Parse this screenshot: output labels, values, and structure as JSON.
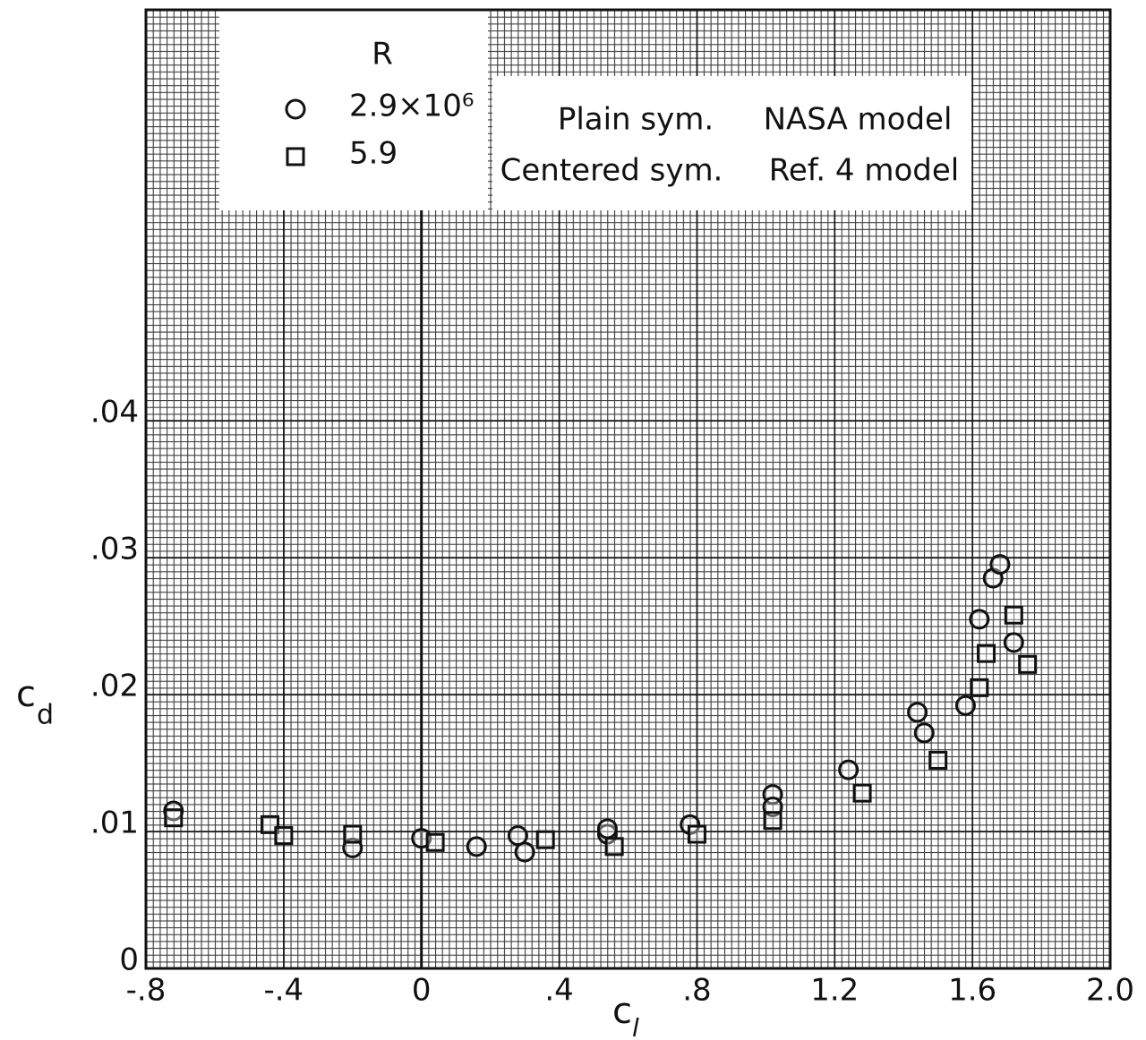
{
  "chart_data": {
    "type": "scatter",
    "x_label": {
      "text": "c",
      "subscript": "l"
    },
    "y_label": {
      "text": "c",
      "subscript": "d"
    },
    "legend_title": "R",
    "symbol_notes": [
      [
        "Plain sym.",
        "NASA model"
      ],
      [
        "Centered sym.",
        "Ref. 4 model"
      ]
    ],
    "xlim": [
      -0.8,
      2.0
    ],
    "ylim": [
      0,
      0.07
    ],
    "xticks": [
      {
        "value": -0.8,
        "label": "-.8"
      },
      {
        "value": -0.4,
        "label": "-.4"
      },
      0,
      {
        "value": 0.4,
        "label": ".4"
      },
      {
        "value": 0.8,
        "label": ".8"
      },
      {
        "value": 1.2,
        "label": "1.2"
      },
      {
        "value": 1.6,
        "label": "1.6"
      },
      {
        "value": 2.0,
        "label": "2.0"
      }
    ],
    "yticks": [
      0,
      {
        "value": 0.01,
        "label": ".01"
      },
      {
        "value": 0.02,
        "label": ".02"
      },
      {
        "value": 0.03,
        "label": ".03"
      },
      {
        "value": 0.04,
        "label": ".04"
      }
    ],
    "grid": true,
    "series": [
      {
        "name": "2.9×10⁶",
        "marker": "circle",
        "color": "#111111",
        "x": [
          -0.72,
          -0.2,
          0.0,
          0.16,
          0.28,
          0.3,
          0.54,
          0.54,
          0.78,
          1.02,
          1.02,
          1.24,
          1.44,
          1.46,
          1.58,
          1.62,
          1.66,
          1.68,
          1.72
        ],
        "values": [
          0.0115,
          0.0088,
          0.0095,
          0.0089,
          0.0097,
          0.0085,
          0.0098,
          0.0102,
          0.0105,
          0.0127,
          0.0118,
          0.0145,
          0.0187,
          0.0172,
          0.0192,
          0.0255,
          0.0285,
          0.0295,
          0.0238
        ]
      },
      {
        "name": "5.9",
        "marker": "square",
        "color": "#111111",
        "x": [
          -0.72,
          -0.44,
          -0.4,
          -0.2,
          0.04,
          0.36,
          0.56,
          0.8,
          1.02,
          1.28,
          1.5,
          1.62,
          1.64,
          1.72,
          1.76
        ],
        "values": [
          0.011,
          0.0105,
          0.0097,
          0.0098,
          0.0092,
          0.0094,
          0.0089,
          0.0098,
          0.0108,
          0.0128,
          0.0152,
          0.0205,
          0.023,
          0.0258,
          0.0222
        ]
      }
    ]
  }
}
